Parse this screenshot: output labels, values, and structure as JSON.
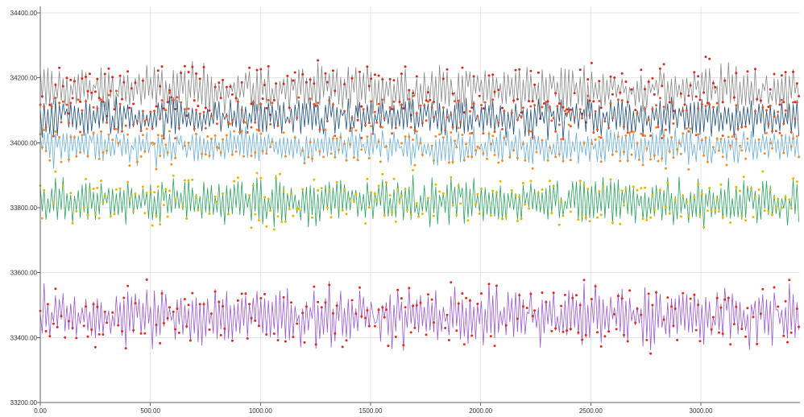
{
  "chart_data": {
    "type": "line",
    "title": "",
    "xlabel": "",
    "ylabel": "",
    "xlim": [
      0,
      3450
    ],
    "ylim": [
      33200,
      34420
    ],
    "grid": true,
    "legend": "none",
    "x_ticks": [
      0,
      500,
      1000,
      1500,
      2000,
      2500,
      3000
    ],
    "x_tick_labels": [
      "0.00",
      "500.00",
      "1000.00",
      "1500.00",
      "2000.00",
      "2500.00",
      "3000.00"
    ],
    "y_ticks": [
      33200,
      33400,
      33600,
      33800,
      34000,
      34200,
      34400
    ],
    "y_tick_labels": [
      "33200.00",
      "33400.00",
      "33600.00",
      "33800.00",
      "34000.00",
      "34200.00",
      "34400.00"
    ],
    "points_per_series": 400,
    "series": [
      {
        "id": "gray",
        "color": "#888888",
        "marker_color": "#d62b1e",
        "center": 34165,
        "amplitude": 75,
        "values_note": "noisy band ~34090-34240"
      },
      {
        "id": "navy",
        "color": "#1f4e79",
        "marker_color": "#e4572e",
        "center": 34080,
        "amplitude": 60,
        "values_note": "noisy band ~34020-34140"
      },
      {
        "id": "blue",
        "color": "#6baed6",
        "marker_color": "#f28e2b",
        "center": 33990,
        "amplitude": 55,
        "values_note": "noisy band ~33935-34045"
      },
      {
        "id": "green",
        "color": "#2ca25f",
        "marker_color": "#e6b800",
        "center": 33820,
        "amplitude": 75,
        "values_note": "noisy band ~33745-33895"
      },
      {
        "id": "purple",
        "color": "#9b59d0",
        "marker_color": "#e02b1f",
        "center": 33465,
        "amplitude": 90,
        "values_note": "noisy band ~33375-33555"
      }
    ]
  }
}
